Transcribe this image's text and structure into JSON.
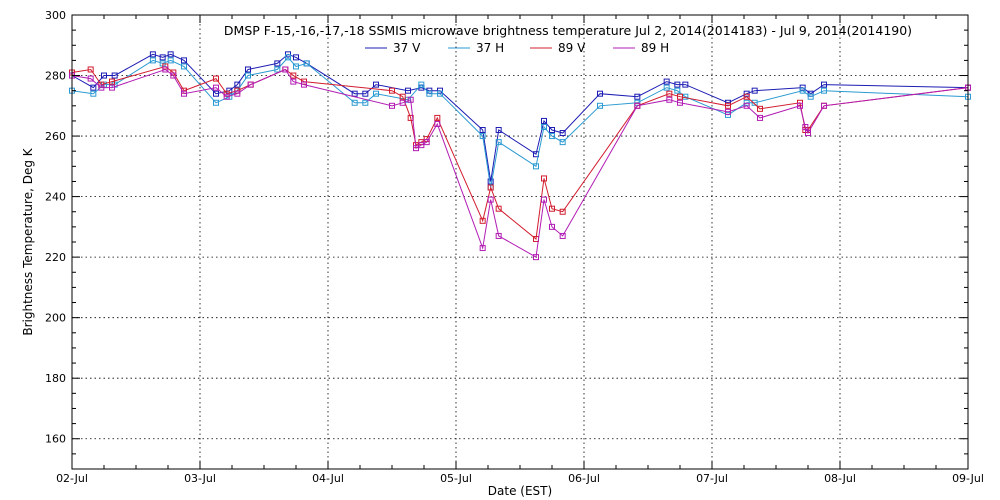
{
  "chart_data": {
    "type": "line",
    "title": "DMSP F-15,-16,-17,-18 SSMIS microwave brightness temperature Jul  2, 2014(2014183) - Jul  9, 2014(2014190)",
    "xlabel": "Date (EST)",
    "ylabel": "Brightness Temperature, Deg K",
    "xlim": [
      "2014-07-02T00:00",
      "2014-07-09T00:00"
    ],
    "ylim": [
      150,
      300
    ],
    "x_ticks": [
      "02-Jul",
      "03-Jul",
      "04-Jul",
      "05-Jul",
      "06-Jul",
      "07-Jul",
      "08-Jul",
      "09-Jul"
    ],
    "y_ticks": [
      160,
      180,
      200,
      220,
      240,
      260,
      280,
      300
    ],
    "grid": true,
    "legend_position": "top-center",
    "series": [
      {
        "name": "37 V",
        "color": "#1c1cb4",
        "x": [
          "2014-07-02T00:00",
          "2014-07-02T04:00",
          "2014-07-02T06:00",
          "2014-07-02T08:00",
          "2014-07-02T15:10",
          "2014-07-02T17:00",
          "2014-07-02T18:30",
          "2014-07-02T21:00",
          "2014-07-03T03:00",
          "2014-07-03T05:30",
          "2014-07-03T07:00",
          "2014-07-03T09:00",
          "2014-07-03T14:30",
          "2014-07-03T16:30",
          "2014-07-03T18:00",
          "2014-07-03T20:00",
          "2014-07-04T05:00",
          "2014-07-04T07:00",
          "2014-07-04T09:00",
          "2014-07-04T15:00",
          "2014-07-04T17:30",
          "2014-07-04T19:00",
          "2014-07-04T21:00",
          "2014-07-05T05:00",
          "2014-07-05T06:30",
          "2014-07-05T08:00",
          "2014-07-05T15:00",
          "2014-07-05T16:30",
          "2014-07-05T18:00",
          "2014-07-05T20:00",
          "2014-07-06T03:00",
          "2014-07-06T10:00",
          "2014-07-06T15:30",
          "2014-07-06T17:30",
          "2014-07-06T19:00",
          "2014-07-07T03:00",
          "2014-07-07T06:30",
          "2014-07-07T08:00",
          "2014-07-07T17:00",
          "2014-07-07T18:30",
          "2014-07-07T21:00",
          "2014-07-09T00:00"
        ],
        "y": [
          280,
          276,
          280,
          280,
          287,
          286,
          287,
          285,
          274,
          275,
          277,
          282,
          284,
          287,
          286,
          284,
          274,
          274,
          277,
          275,
          276,
          275,
          275,
          262,
          245,
          262,
          254,
          265,
          262,
          261,
          274,
          273,
          278,
          277,
          277,
          271,
          274,
          275,
          276,
          274,
          277,
          276
        ]
      },
      {
        "name": "37 H",
        "color": "#2b9ad2",
        "x": [
          "2014-07-02T00:00",
          "2014-07-02T04:00",
          "2014-07-02T06:00",
          "2014-07-02T08:00",
          "2014-07-02T15:10",
          "2014-07-02T17:00",
          "2014-07-02T18:30",
          "2014-07-02T21:00",
          "2014-07-03T03:00",
          "2014-07-03T05:30",
          "2014-07-03T07:00",
          "2014-07-03T09:00",
          "2014-07-03T14:30",
          "2014-07-03T16:30",
          "2014-07-03T18:00",
          "2014-07-03T20:00",
          "2014-07-04T05:00",
          "2014-07-04T07:00",
          "2014-07-04T09:00",
          "2014-07-04T15:00",
          "2014-07-04T17:30",
          "2014-07-04T19:00",
          "2014-07-04T21:00",
          "2014-07-05T05:00",
          "2014-07-05T06:30",
          "2014-07-05T08:00",
          "2014-07-05T15:00",
          "2014-07-05T16:30",
          "2014-07-05T18:00",
          "2014-07-05T20:00",
          "2014-07-06T03:00",
          "2014-07-06T10:00",
          "2014-07-06T15:30",
          "2014-07-06T17:30",
          "2014-07-06T19:00",
          "2014-07-07T03:00",
          "2014-07-07T06:30",
          "2014-07-07T08:00",
          "2014-07-07T17:00",
          "2014-07-07T18:30",
          "2014-07-07T21:00",
          "2014-07-09T00:00"
        ],
        "y": [
          275,
          274,
          277,
          277,
          285,
          284,
          285,
          283,
          271,
          273,
          275,
          280,
          282,
          286,
          283,
          284,
          271,
          271,
          274,
          272,
          277,
          274,
          274,
          260,
          243,
          258,
          250,
          263,
          260,
          258,
          270,
          271,
          276,
          275,
          273,
          267,
          271,
          271,
          275,
          273,
          275,
          273
        ]
      },
      {
        "name": "89 V",
        "color": "#d21c2e",
        "x": [
          "2014-07-02T00:00",
          "2014-07-02T03:30",
          "2014-07-02T05:30",
          "2014-07-02T07:30",
          "2014-07-02T17:30",
          "2014-07-02T19:00",
          "2014-07-02T21:00",
          "2014-07-03T03:00",
          "2014-07-03T05:00",
          "2014-07-03T07:00",
          "2014-07-03T09:30",
          "2014-07-03T16:00",
          "2014-07-03T17:30",
          "2014-07-03T19:30",
          "2014-07-04T12:00",
          "2014-07-04T14:00",
          "2014-07-04T15:30",
          "2014-07-04T16:30",
          "2014-07-04T17:30",
          "2014-07-04T18:30",
          "2014-07-04T20:30",
          "2014-07-05T05:00",
          "2014-07-05T06:30",
          "2014-07-05T08:00",
          "2014-07-05T15:00",
          "2014-07-05T16:30",
          "2014-07-05T18:00",
          "2014-07-05T20:00",
          "2014-07-06T10:00",
          "2014-07-06T16:00",
          "2014-07-06T18:00",
          "2014-07-07T03:00",
          "2014-07-07T06:30",
          "2014-07-07T09:00",
          "2014-07-07T16:30",
          "2014-07-07T17:30",
          "2014-07-07T18:00",
          "2014-07-07T21:00",
          "2014-07-09T00:00"
        ],
        "y": [
          281,
          282,
          277,
          278,
          283,
          281,
          275,
          279,
          274,
          275,
          277,
          282,
          280,
          278,
          275,
          273,
          266,
          257,
          258,
          259,
          266,
          232,
          243,
          236,
          226,
          246,
          236,
          235,
          270,
          274,
          273,
          270,
          273,
          269,
          271,
          262,
          262,
          270,
          276
        ]
      },
      {
        "name": "89 H",
        "color": "#b21cb4",
        "x": [
          "2014-07-02T00:00",
          "2014-07-02T03:30",
          "2014-07-02T05:30",
          "2014-07-02T07:30",
          "2014-07-02T17:30",
          "2014-07-02T19:00",
          "2014-07-02T21:00",
          "2014-07-03T03:00",
          "2014-07-03T05:00",
          "2014-07-03T07:00",
          "2014-07-03T09:30",
          "2014-07-03T16:00",
          "2014-07-03T17:30",
          "2014-07-03T19:30",
          "2014-07-04T12:00",
          "2014-07-04T14:00",
          "2014-07-04T15:30",
          "2014-07-04T16:30",
          "2014-07-04T17:30",
          "2014-07-04T18:30",
          "2014-07-04T20:30",
          "2014-07-05T05:00",
          "2014-07-05T06:30",
          "2014-07-05T08:00",
          "2014-07-05T15:00",
          "2014-07-05T16:30",
          "2014-07-05T18:00",
          "2014-07-05T20:00",
          "2014-07-06T10:00",
          "2014-07-06T16:00",
          "2014-07-06T18:00",
          "2014-07-07T03:00",
          "2014-07-07T06:30",
          "2014-07-07T09:00",
          "2014-07-07T16:30",
          "2014-07-07T17:30",
          "2014-07-07T18:00",
          "2014-07-07T21:00",
          "2014-07-09T00:00"
        ],
        "y": [
          280,
          279,
          276,
          276,
          282,
          280,
          274,
          276,
          273,
          274,
          277,
          282,
          278,
          277,
          270,
          271,
          272,
          256,
          257,
          258,
          264,
          223,
          239,
          227,
          220,
          239,
          230,
          227,
          270,
          272,
          271,
          268,
          270,
          266,
          270,
          263,
          261,
          270,
          276
        ]
      }
    ]
  }
}
